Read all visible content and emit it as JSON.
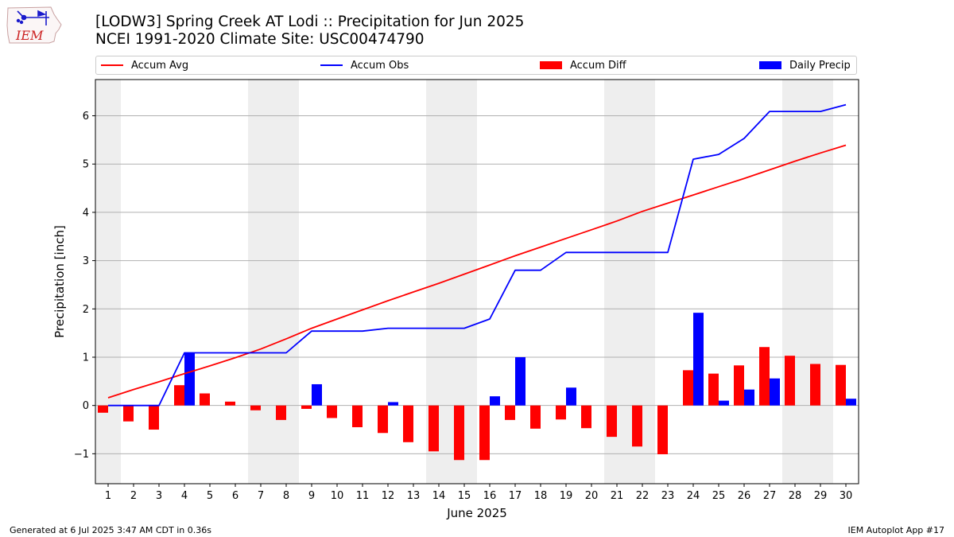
{
  "header": {
    "title_line1": "[LODW3] Spring Creek  AT Lodi :: Precipitation for Jun 2025",
    "title_line2": "NCEI 1991-2020 Climate Site: USC00474790",
    "logo_text": "IEM"
  },
  "footer": {
    "left": "Generated at 6 Jul 2025 3:47 AM CDT in 0.36s",
    "right": "IEM Autoplot App #17"
  },
  "colors": {
    "accum_avg": "#ff0000",
    "accum_obs": "#0000ff",
    "accum_diff": "#ff0000",
    "daily_precip": "#0000ff",
    "weekend_shade": "#eeeeee",
    "grid": "#b0b0b0"
  },
  "chart_data": {
    "type": "bar",
    "xlabel": "June 2025",
    "ylabel": "Precipitation [inch]",
    "ylim": [
      -1.62,
      6.75
    ],
    "yticks": [
      -1,
      0,
      1,
      2,
      3,
      4,
      5,
      6
    ],
    "ytick_labels": [
      "−1",
      "0",
      "1",
      "2",
      "3",
      "4",
      "5",
      "6"
    ],
    "grid": "horizontal",
    "legend_position": "top",
    "categories": [
      "1",
      "2",
      "3",
      "4",
      "5",
      "6",
      "7",
      "8",
      "9",
      "10",
      "11",
      "12",
      "13",
      "14",
      "15",
      "16",
      "17",
      "18",
      "19",
      "20",
      "21",
      "22",
      "23",
      "24",
      "25",
      "26",
      "27",
      "28",
      "29",
      "30"
    ],
    "weekend_bands": [
      [
        1,
        1
      ],
      [
        7,
        8
      ],
      [
        14,
        15
      ],
      [
        21,
        22
      ],
      [
        28,
        29
      ]
    ],
    "series": [
      {
        "name": "Accum Avg",
        "kind": "line",
        "values": [
          0.16,
          0.33,
          0.49,
          0.66,
          0.82,
          0.99,
          1.17,
          1.38,
          1.6,
          1.79,
          1.98,
          2.17,
          2.35,
          2.53,
          2.72,
          2.91,
          3.1,
          3.28,
          3.46,
          3.64,
          3.82,
          4.02,
          4.19,
          4.36,
          4.53,
          4.7,
          4.88,
          5.06,
          5.23,
          5.39
        ]
      },
      {
        "name": "Accum Obs",
        "kind": "line",
        "values": [
          0.0,
          0.0,
          0.0,
          1.09,
          1.09,
          1.09,
          1.09,
          1.09,
          1.54,
          1.54,
          1.54,
          1.6,
          1.6,
          1.6,
          1.6,
          1.79,
          2.8,
          2.8,
          3.17,
          3.17,
          3.17,
          3.17,
          3.17,
          5.1,
          5.2,
          5.53,
          6.09,
          6.09,
          6.09,
          6.23
        ]
      },
      {
        "name": "Accum Diff",
        "kind": "bar",
        "values": [
          -0.15,
          -0.33,
          -0.5,
          0.42,
          0.25,
          0.08,
          -0.1,
          -0.3,
          -0.07,
          -0.26,
          -0.45,
          -0.57,
          -0.76,
          -0.95,
          -1.13,
          -1.13,
          -0.3,
          -0.48,
          -0.29,
          -0.47,
          -0.65,
          -0.85,
          -1.01,
          0.73,
          0.66,
          0.83,
          1.21,
          1.03,
          0.86,
          0.84
        ]
      },
      {
        "name": "Daily Precip",
        "kind": "bar",
        "values": [
          0,
          0,
          0,
          1.09,
          0,
          0,
          0,
          0,
          0.44,
          0,
          0,
          0.07,
          0,
          0,
          0,
          0.19,
          1.0,
          0,
          0.37,
          0,
          0,
          0,
          0,
          1.92,
          0.1,
          0.33,
          0.56,
          0,
          0,
          0.14
        ]
      }
    ]
  }
}
